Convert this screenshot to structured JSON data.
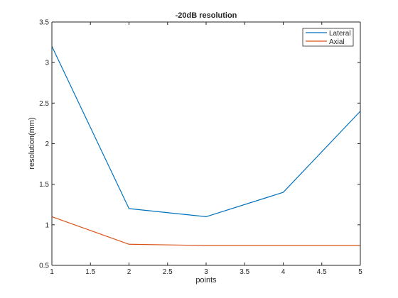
{
  "chart_data": {
    "type": "line",
    "title": "-20dB resolution",
    "xlabel": "points",
    "ylabel": "resolution(mm)",
    "x": [
      1,
      2,
      3,
      4,
      5
    ],
    "xlim": [
      1,
      5
    ],
    "ylim": [
      0.5,
      3.5
    ],
    "xticks": [
      1,
      1.5,
      2,
      2.5,
      3,
      3.5,
      4,
      4.5,
      5
    ],
    "yticks": [
      0.5,
      1,
      1.5,
      2,
      2.5,
      3,
      3.5
    ],
    "xtick_labels": [
      "1",
      "1.5",
      "2",
      "2.5",
      "3",
      "3.5",
      "4",
      "4.5",
      "5"
    ],
    "ytick_labels": [
      "0.5",
      "1",
      "1.5",
      "2",
      "2.5",
      "3",
      "3.5"
    ],
    "grid": false,
    "legend_position": "top-right",
    "series": [
      {
        "name": "Lateral",
        "color": "#0072bd",
        "values": [
          3.2,
          1.2,
          1.1,
          1.4,
          2.4
        ]
      },
      {
        "name": "Axial",
        "color": "#d95319",
        "values": [
          1.1,
          0.76,
          0.745,
          0.745,
          0.745
        ]
      }
    ]
  }
}
